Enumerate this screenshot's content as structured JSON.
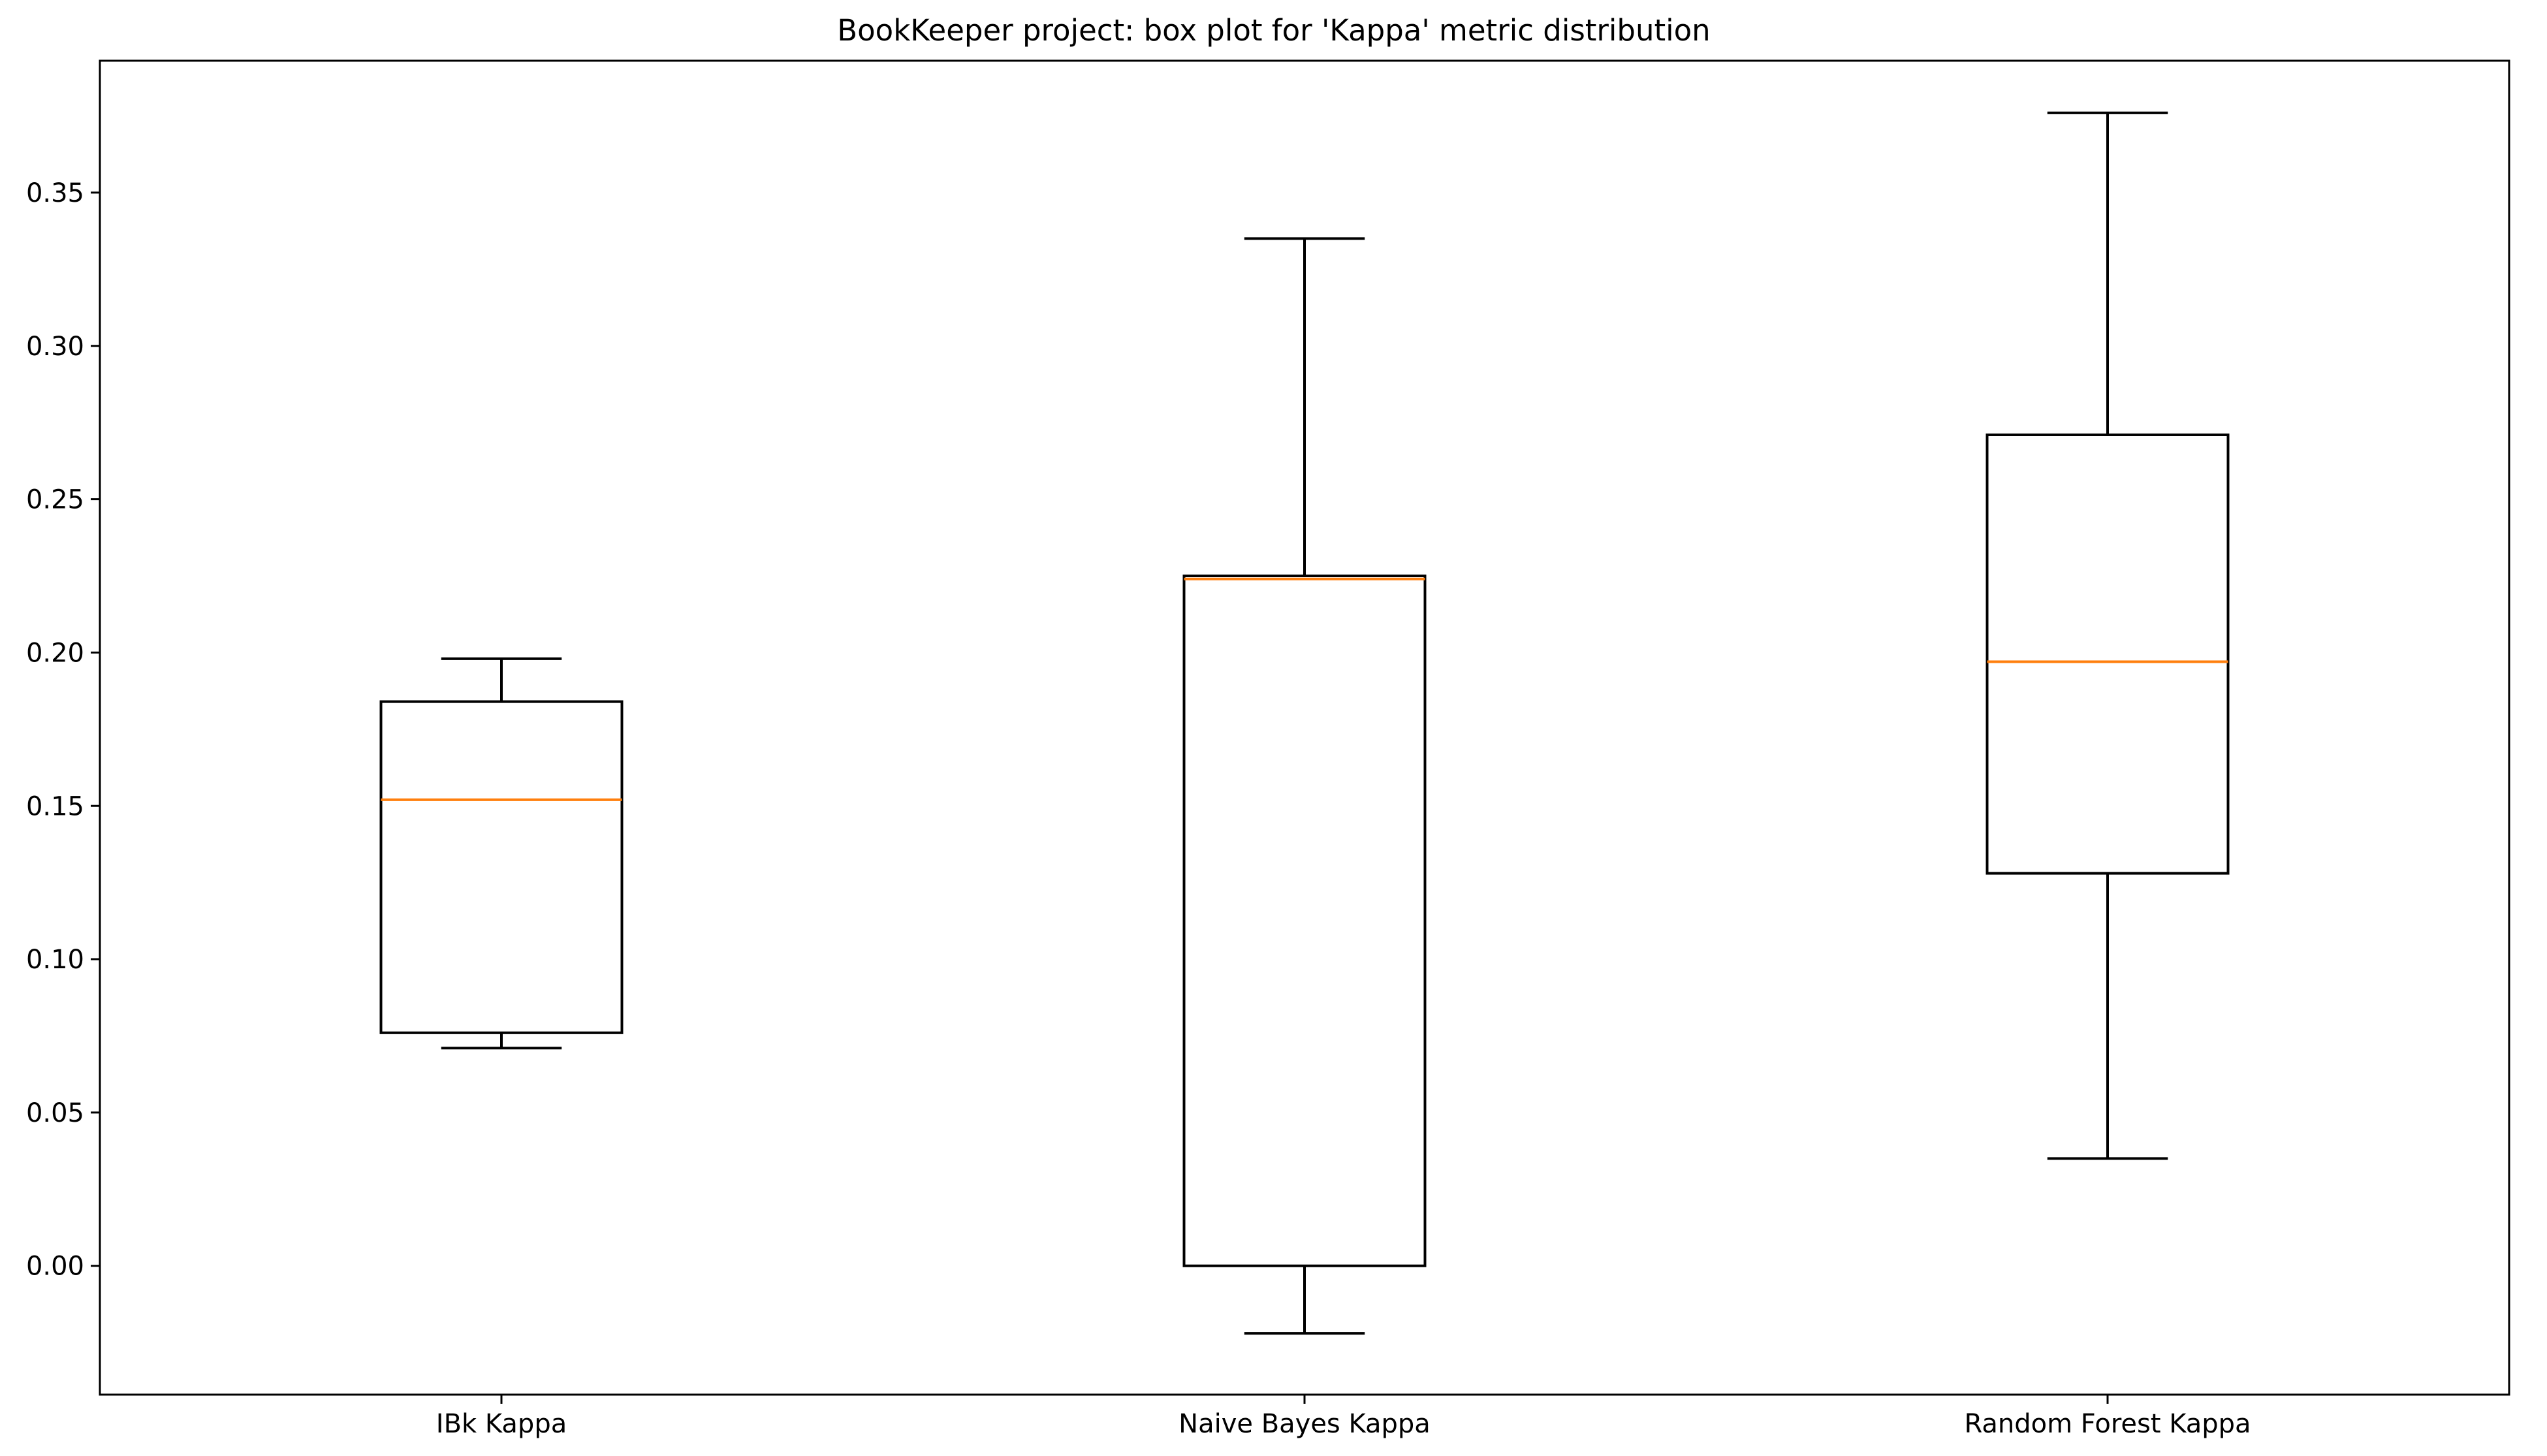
{
  "chart_data": {
    "type": "box",
    "title": "BookKeeper project: box plot for 'Kappa' metric distribution",
    "xlabel": "",
    "ylabel": "",
    "ylim": [
      -0.042,
      0.393
    ],
    "yticks": [
      {
        "value": 0.0,
        "label": "0.00"
      },
      {
        "value": 0.05,
        "label": "0.05"
      },
      {
        "value": 0.1,
        "label": "0.10"
      },
      {
        "value": 0.15,
        "label": "0.15"
      },
      {
        "value": 0.2,
        "label": "0.20"
      },
      {
        "value": 0.25,
        "label": "0.25"
      },
      {
        "value": 0.3,
        "label": "0.30"
      },
      {
        "value": 0.35,
        "label": "0.35"
      }
    ],
    "categories": [
      "IBk Kappa",
      "Naive Bayes Kappa",
      "Random Forest Kappa"
    ],
    "boxes": [
      {
        "label": "IBk Kappa",
        "whisker_low": 0.071,
        "q1": 0.076,
        "median": 0.152,
        "q3": 0.184,
        "whisker_high": 0.198
      },
      {
        "label": "Naive Bayes Kappa",
        "whisker_low": -0.022,
        "q1": 0.0,
        "median": 0.224,
        "q3": 0.225,
        "whisker_high": 0.335
      },
      {
        "label": "Random Forest Kappa",
        "whisker_low": 0.035,
        "q1": 0.128,
        "median": 0.197,
        "q3": 0.271,
        "whisker_high": 0.376
      }
    ],
    "grid": false,
    "colors": {
      "box": "#000000",
      "median": "#ff7f0e"
    }
  }
}
